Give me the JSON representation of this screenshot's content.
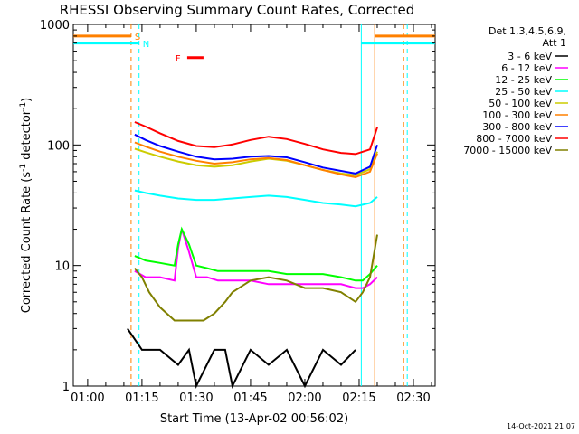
{
  "chart_data": {
    "type": "line",
    "title": "RHESSI Observing Summary Count Rates, Corrected",
    "xlabel": "Start Time (13-Apr-02 00:56:02)",
    "ylabel": "Corrected Count Rate (s⁻¹ detector⁻¹)",
    "ylabel_parts": {
      "main": "Corrected Count Rate (s",
      "sup1": "-1",
      "mid": " detector",
      "sup2": "-1",
      "end": ")"
    },
    "y_scale": "log",
    "ylim": [
      1,
      1000
    ],
    "xlim_minutes": [
      56.03,
      156.0
    ],
    "x_ticks": [
      {
        "label": "01:00",
        "minutes": 60
      },
      {
        "label": "01:15",
        "minutes": 75
      },
      {
        "label": "01:30",
        "minutes": 90
      },
      {
        "label": "01:45",
        "minutes": 105
      },
      {
        "label": "02:00",
        "minutes": 120
      },
      {
        "label": "02:15",
        "minutes": 135
      },
      {
        "label": "02:30",
        "minutes": 150
      }
    ],
    "y_ticks": [
      {
        "label": "1",
        "value": 1
      },
      {
        "label": "10",
        "value": 10
      },
      {
        "label": "100",
        "value": 100
      },
      {
        "label": "1000",
        "value": 1000
      }
    ],
    "grid": false,
    "legend_position": "right",
    "legend_header": [
      "Det 1,3,4,5,6,9,",
      "Att 1"
    ],
    "timestamp": "14-Oct-2021 21:07",
    "series": [
      {
        "name": "3 - 6 keV",
        "color": "#000000",
        "x": [
          71,
          75,
          80,
          85,
          88,
          90,
          95,
          98,
          100,
          105,
          110,
          115,
          120,
          125,
          130,
          134
        ],
        "y": [
          3,
          2,
          2,
          1.5,
          2,
          1,
          2,
          2,
          1,
          2,
          1.5,
          2,
          1,
          2,
          1.5,
          2
        ]
      },
      {
        "name": "6 - 12 keV",
        "color": "#ff00ff",
        "x": [
          73,
          76,
          80,
          84,
          85,
          86,
          88,
          90,
          93,
          96,
          100,
          105,
          110,
          115,
          120,
          125,
          130,
          134,
          136,
          138,
          140
        ],
        "y": [
          9,
          8,
          8,
          7.5,
          14,
          20,
          13,
          8,
          8,
          7.5,
          7.5,
          7.5,
          7,
          7,
          7,
          7,
          7,
          6.5,
          6.5,
          7,
          8
        ]
      },
      {
        "name": "12 - 25 keV",
        "color": "#00ff00",
        "x": [
          73,
          76,
          80,
          84,
          85,
          86,
          88,
          90,
          93,
          96,
          100,
          105,
          110,
          115,
          120,
          125,
          130,
          134,
          136,
          138,
          140
        ],
        "y": [
          12,
          11,
          10.5,
          10,
          15,
          20,
          15,
          10,
          9.5,
          9,
          9,
          9,
          9,
          8.5,
          8.5,
          8.5,
          8,
          7.5,
          7.5,
          8.5,
          10
        ]
      },
      {
        "name": "25 - 50 keV",
        "color": "#00ffff",
        "x": [
          73,
          76,
          80,
          85,
          90,
          95,
          100,
          105,
          110,
          115,
          120,
          125,
          130,
          134,
          138,
          140
        ],
        "y": [
          42,
          40,
          38,
          36,
          35,
          35,
          36,
          37,
          38,
          37,
          35,
          33,
          32,
          31,
          33,
          37
        ]
      },
      {
        "name": "50 - 100 keV",
        "color": "#cccc00",
        "x": [
          73,
          76,
          80,
          85,
          90,
          95,
          100,
          105,
          110,
          115,
          120,
          125,
          130,
          134,
          138,
          140
        ],
        "y": [
          93,
          87,
          80,
          73,
          68,
          66,
          68,
          73,
          77,
          74,
          68,
          62,
          58,
          56,
          63,
          88
        ]
      },
      {
        "name": "100 - 300 keV",
        "color": "#ff8000",
        "x": [
          73,
          76,
          80,
          85,
          90,
          95,
          100,
          105,
          110,
          115,
          120,
          125,
          130,
          134,
          138,
          140
        ],
        "y": [
          105,
          97,
          88,
          80,
          74,
          70,
          72,
          76,
          78,
          75,
          68,
          62,
          57,
          54,
          60,
          85
        ]
      },
      {
        "name": "300 - 800 keV",
        "color": "#0000ff",
        "x": [
          73,
          76,
          80,
          85,
          90,
          95,
          100,
          105,
          110,
          115,
          120,
          125,
          130,
          134,
          138,
          140
        ],
        "y": [
          122,
          110,
          98,
          88,
          80,
          76,
          77,
          80,
          81,
          79,
          72,
          65,
          61,
          58,
          66,
          100
        ]
      },
      {
        "name": "800 - 7000 keV",
        "color": "#ff0000",
        "x": [
          73,
          76,
          80,
          85,
          90,
          95,
          100,
          105,
          110,
          115,
          120,
          125,
          130,
          134,
          138,
          140
        ],
        "y": [
          155,
          142,
          125,
          108,
          98,
          96,
          101,
          110,
          117,
          112,
          102,
          92,
          86,
          84,
          92,
          140
        ]
      },
      {
        "name": "7000 - 15000 keV",
        "color": "#808000",
        "x": [
          73,
          75,
          77,
          80,
          84,
          86,
          88,
          90,
          92,
          95,
          98,
          100,
          105,
          110,
          115,
          120,
          125,
          130,
          134,
          136,
          138,
          140
        ],
        "y": [
          9.5,
          8,
          6,
          4.5,
          3.5,
          3.5,
          3.5,
          3.5,
          3.5,
          4,
          5,
          6,
          7.5,
          8,
          7.5,
          6.5,
          6.5,
          6,
          5,
          6,
          8,
          18
        ]
      }
    ],
    "markers": [
      {
        "label": "S",
        "color": "#ff8000",
        "x_minutes": 72.0,
        "style": "dashed"
      },
      {
        "label": "N",
        "color": "#00ffff",
        "x_minutes": 74.2,
        "style": "dashed"
      },
      {
        "label": "",
        "color": "#00ffff",
        "x_minutes": 135.6,
        "style": "solid"
      },
      {
        "label": "",
        "color": "#ff8000",
        "x_minutes": 139.3,
        "style": "solid"
      },
      {
        "label": "",
        "color": "#ff8000",
        "x_minutes": 147.3,
        "style": "dashed"
      },
      {
        "label": "",
        "color": "#00ffff",
        "x_minutes": 148.3,
        "style": "dashed"
      }
    ],
    "segments": [
      {
        "label": "",
        "color": "#ff8000",
        "x": [
          56.03,
          72.0
        ],
        "y": 800
      },
      {
        "label": "",
        "color": "#00ffff",
        "x": [
          56.03,
          74.2
        ],
        "y": 700
      },
      {
        "label": "",
        "color": "#00ffff",
        "x": [
          135.6,
          156.0
        ],
        "y": 700
      },
      {
        "label": "",
        "color": "#ff8000",
        "x": [
          139.3,
          156.0
        ],
        "y": 800
      },
      {
        "label": "F",
        "color": "#ff0000",
        "x": [
          87.5,
          92.0
        ],
        "y": 530
      }
    ]
  }
}
